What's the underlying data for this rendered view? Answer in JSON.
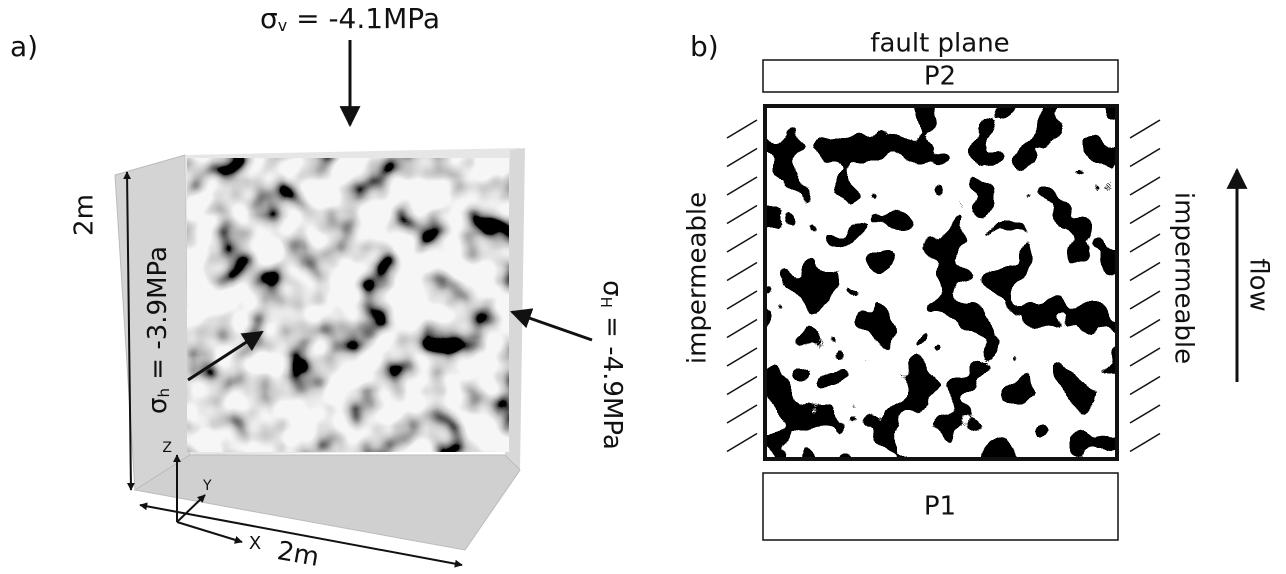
{
  "panel_a": {
    "label": "a)",
    "sigma_v": {
      "symbol": "σ",
      "subscript": "v",
      "text": " = -4.1MPa"
    },
    "sigma_h": {
      "symbol": "σ",
      "subscript": "h",
      "text": " = -3.9MPa"
    },
    "sigma_H": {
      "symbol": "σ",
      "subscript": "H",
      "text": " = -4.9MPa"
    },
    "height_label": "2m",
    "width_label": "2m",
    "axes": {
      "z": "Z",
      "y": "Y",
      "x": "X"
    }
  },
  "panel_b": {
    "label": "b)",
    "top_label": "fault plane",
    "top_box": "P2",
    "bottom_box": "P1",
    "left_label": "impermeable",
    "right_label": "impermeable",
    "arrow_label": "flow"
  }
}
